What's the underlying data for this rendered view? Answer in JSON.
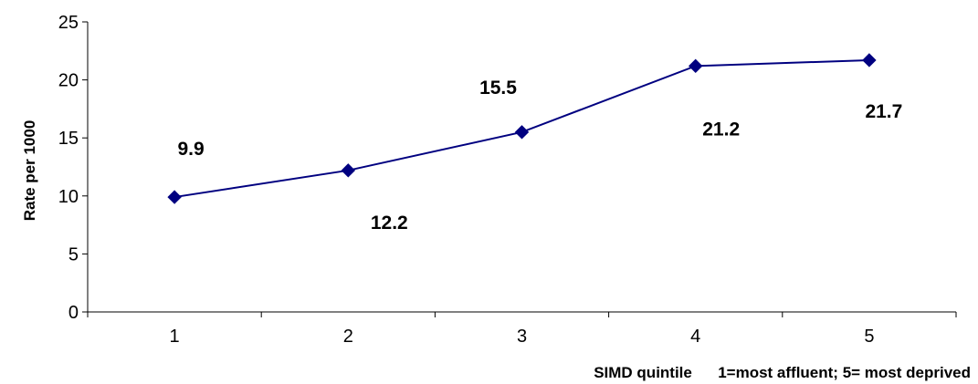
{
  "chart_data": {
    "type": "line",
    "x": [
      1,
      2,
      3,
      4,
      5
    ],
    "series": [
      {
        "values": [
          9.9,
          12.2,
          15.5,
          21.2,
          21.7
        ],
        "data_labels": [
          "9.9",
          "12.2",
          "15.5",
          "21.2",
          "21.7"
        ]
      }
    ],
    "xlabel": "SIMD quintile      1=most affluent; 5= most deprived",
    "ylabel": "Rate per 1000",
    "ylim": [
      0,
      25
    ],
    "yticks": [
      0,
      5,
      10,
      15,
      20,
      25
    ],
    "xticks": [
      "1",
      "2",
      "3",
      "4",
      "5"
    ],
    "grid": false,
    "legend": "none",
    "colors": {
      "series": "#000080",
      "axis": "#000000"
    },
    "marker": "diamond"
  }
}
